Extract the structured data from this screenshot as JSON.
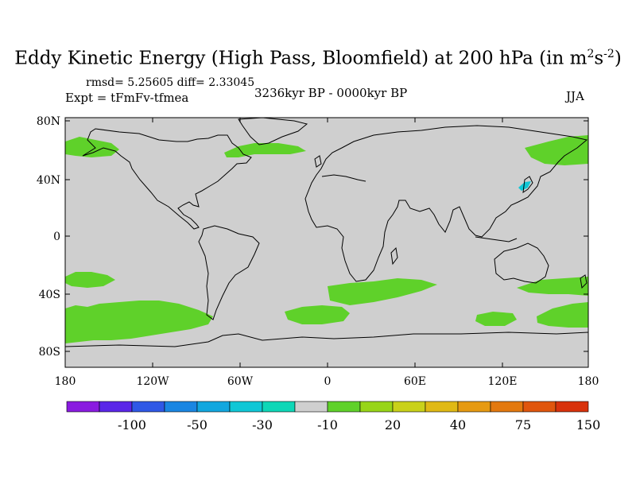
{
  "title": {
    "main": "Eddy Kinetic Energy (High Pass, Bloomfield) at 200 hPa (in m",
    "sup1": "2",
    "mid": "s",
    "sup2": "-2",
    "end": ")"
  },
  "stats": "rmsd= 5.25605  diff= 2.33045",
  "experiment": "Expt = tFmFv-tfmea",
  "period": "3236kyr BP - 0000kyr BP",
  "season": "JJA",
  "axes": {
    "lat_labels": [
      "80N",
      "40N",
      "0",
      "40S",
      "80S"
    ],
    "lon_labels": [
      "180",
      "120W",
      "60W",
      "0",
      "60E",
      "120E",
      "180"
    ]
  },
  "colorbar": {
    "colors": [
      "#8a1be0",
      "#5a26e8",
      "#2f58e6",
      "#1a86e2",
      "#12a7df",
      "#10c7d6",
      "#0ed7b7",
      "#cfcfcf",
      "#5fd12a",
      "#98d518",
      "#c9d11a",
      "#e0b915",
      "#e69a12",
      "#e3790f",
      "#e0560d",
      "#d8320c"
    ],
    "labels": [
      "-100",
      "-50",
      "-30",
      "-10",
      "20",
      "40",
      "75",
      "150"
    ]
  },
  "map_colors": {
    "background": "#cfcfcf",
    "positive": "#5fd12a",
    "negative": "#10c7d6",
    "coast": "#000000"
  }
}
